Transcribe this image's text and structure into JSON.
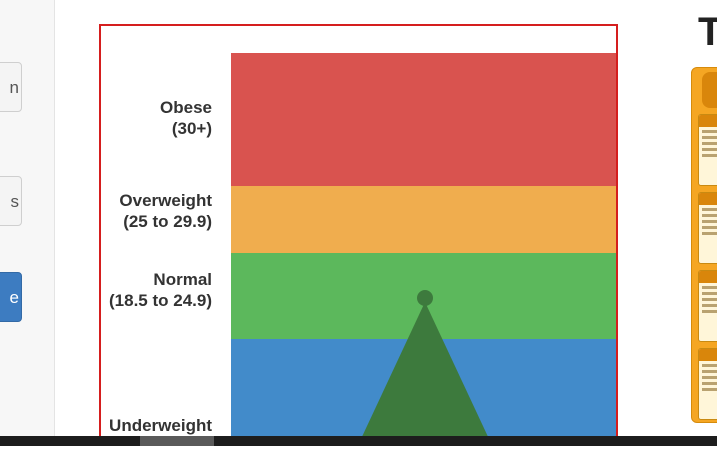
{
  "sidebar": {
    "buttons": [
      {
        "label": "n",
        "style": "default"
      },
      {
        "label": "s",
        "style": "default"
      },
      {
        "label": "e",
        "style": "primary"
      }
    ]
  },
  "bmi_chart": {
    "bands": [
      {
        "name": "Obese",
        "range": "(30+)",
        "color": "#d9534f"
      },
      {
        "name": "Overweight",
        "range": "(25 to 29.9)",
        "color": "#f0ad4e"
      },
      {
        "name": "Normal",
        "range": "(18.5 to 24.9)",
        "color": "#5cb85c"
      },
      {
        "name": "Underweight",
        "range": "",
        "color": "#428bca"
      }
    ],
    "indicator_color": "#3d7a3d",
    "frame_color": "#d51e1e"
  },
  "right_panel": {
    "title": "T",
    "accent_color": "#f5a623"
  }
}
